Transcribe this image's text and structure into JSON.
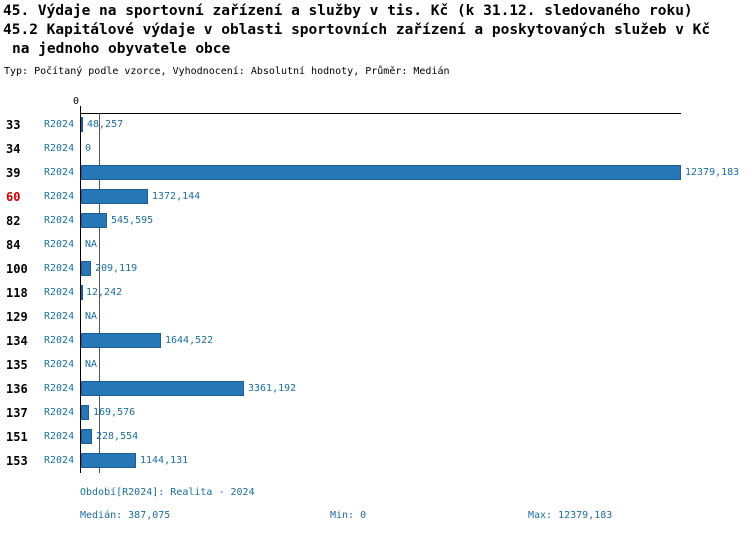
{
  "chart_data": {
    "type": "bar",
    "orientation": "horizontal",
    "title_lines": [
      "45. Výdaje na sportovní zařízení a služby v tis. Kč (k 31.12. sledovaného roku)",
      "45.2 Kapitálové výdaje v oblasti sportovních zařízení a poskytovaných služeb v Kč",
      "na jednoho obyvatele obce"
    ],
    "meta_line": "Typ: Počítaný podle vzorce, Vyhodnocení: Absolutní hodnoty, Průměr: Medián",
    "axis_zero_label": "0",
    "xlim": [
      0,
      12379.183
    ],
    "median": 387.075,
    "series_label": "R2024",
    "rows": [
      {
        "id": "33",
        "period": "R2024",
        "value": 48.257,
        "label": "48,257",
        "highlight": false
      },
      {
        "id": "34",
        "period": "R2024",
        "value": 0,
        "label": "0",
        "highlight": false
      },
      {
        "id": "39",
        "period": "R2024",
        "value": 12379.183,
        "label": "12379,183",
        "highlight": false
      },
      {
        "id": "60",
        "period": "R2024",
        "value": 1372.144,
        "label": "1372,144",
        "highlight": true
      },
      {
        "id": "82",
        "period": "R2024",
        "value": 545.595,
        "label": "545,595",
        "highlight": false
      },
      {
        "id": "84",
        "period": "R2024",
        "value": null,
        "label": "NA",
        "highlight": false
      },
      {
        "id": "100",
        "period": "R2024",
        "value": 209.119,
        "label": "209,119",
        "highlight": false
      },
      {
        "id": "118",
        "period": "R2024",
        "value": 12.242,
        "label": "12,242",
        "highlight": false
      },
      {
        "id": "129",
        "period": "R2024",
        "value": null,
        "label": "NA",
        "highlight": false
      },
      {
        "id": "134",
        "period": "R2024",
        "value": 1644.522,
        "label": "1644,522",
        "highlight": false
      },
      {
        "id": "135",
        "period": "R2024",
        "value": null,
        "label": "NA",
        "highlight": false
      },
      {
        "id": "136",
        "period": "R2024",
        "value": 3361.192,
        "label": "3361,192",
        "highlight": false
      },
      {
        "id": "137",
        "period": "R2024",
        "value": 169.576,
        "label": "169,576",
        "highlight": false
      },
      {
        "id": "151",
        "period": "R2024",
        "value": 228.554,
        "label": "228,554",
        "highlight": false
      },
      {
        "id": "153",
        "period": "R2024",
        "value": 1144.131,
        "label": "1144,131",
        "highlight": false
      }
    ],
    "footer": {
      "period": "Období[R2024]: Realita - 2024",
      "median": "Medián: 387,075",
      "min": "Min: 0",
      "max": "Max: 12379,183"
    },
    "colors": {
      "bar": "#2777b6",
      "bar_border": "#1c5e90",
      "text_blue": "#1d6e9e",
      "highlight_red": "#cc0000",
      "axis": "#000000",
      "median_line": "#555555"
    }
  }
}
